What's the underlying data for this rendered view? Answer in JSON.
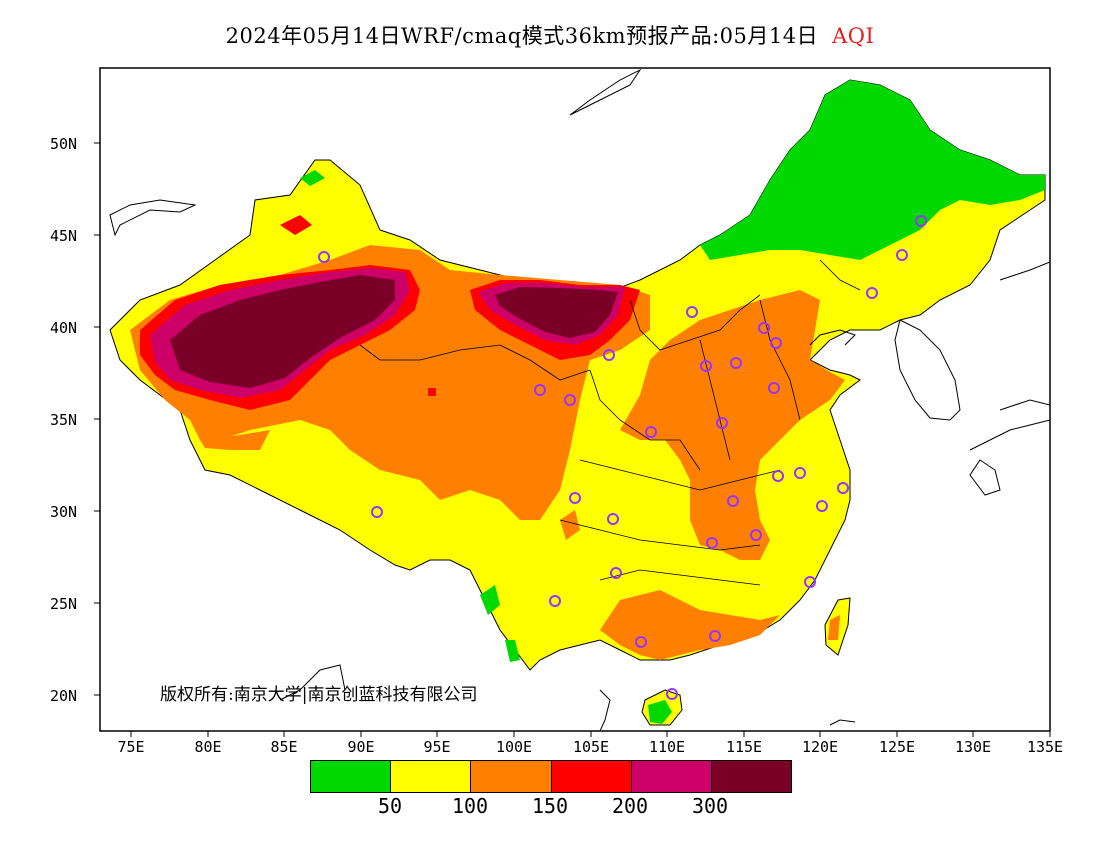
{
  "title": {
    "main": "2024年05月14日WRF/cmaq模式36km预报产品:05月14日",
    "variable": "AQI"
  },
  "axes": {
    "y_ticks": [
      "50N",
      "45N",
      "40N",
      "35N",
      "30N",
      "25N",
      "20N"
    ],
    "x_ticks": [
      "75E",
      "80E",
      "85E",
      "90E",
      "95E",
      "100E",
      "105E",
      "110E",
      "115E",
      "120E",
      "125E",
      "130E",
      "135E"
    ]
  },
  "legend": {
    "colors": [
      "#00d800",
      "#ffff00",
      "#ff8000",
      "#ff0000",
      "#cc0066",
      "#7a0028"
    ],
    "labels": [
      "50",
      "100",
      "150",
      "200",
      "300"
    ]
  },
  "copyright": "版权所有:南京大学|南京创蓝科技有限公司",
  "colors": {
    "good": "#00d800",
    "moderate": "#ffff00",
    "usg": "#ff8000",
    "unhealthy": "#ff0000",
    "very_unhealthy": "#cc0066",
    "hazardous": "#7a0028",
    "station_marker": "#9933ff"
  }
}
